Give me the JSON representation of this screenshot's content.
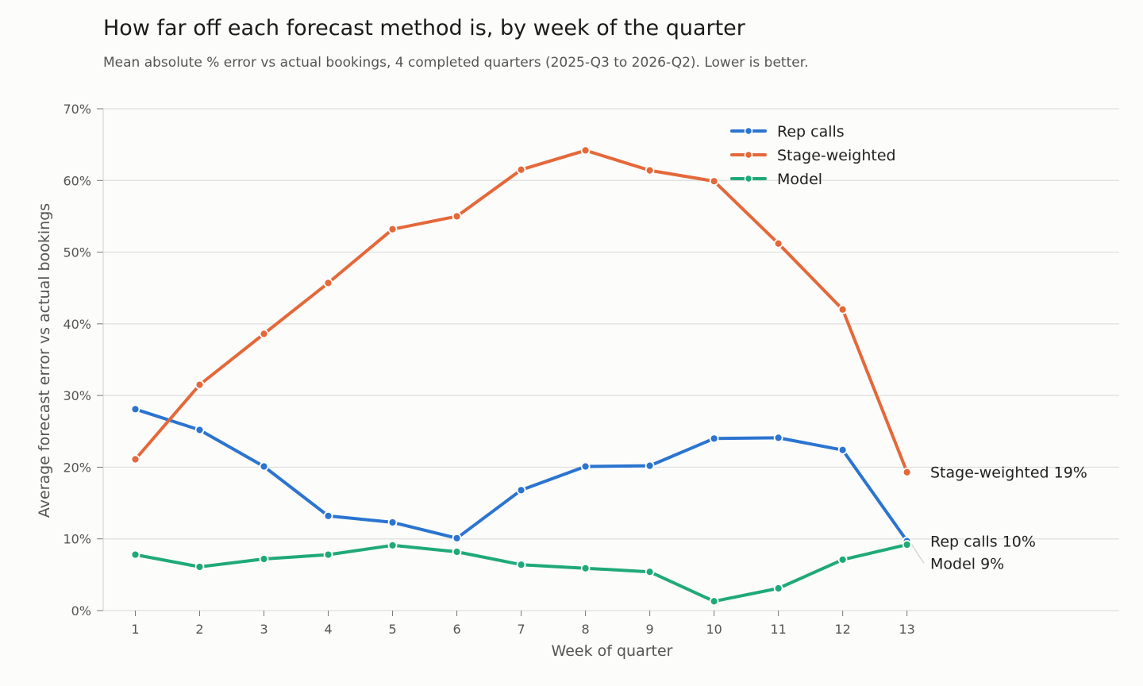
{
  "title": "How far off each forecast method is, by week of the quarter",
  "subtitle": "Mean absolute % error vs actual bookings, 4 completed quarters (2025-Q3 to 2026-Q2). Lower is better.",
  "chart_data": {
    "type": "line",
    "xlabel": "Week of quarter",
    "ylabel": "Average forecast error vs actual bookings",
    "x": [
      1,
      2,
      3,
      4,
      5,
      6,
      7,
      8,
      9,
      10,
      11,
      12,
      13
    ],
    "xlim": [
      0.5,
      16.3
    ],
    "ylim": [
      0,
      70
    ],
    "yticks": [
      0,
      10,
      20,
      30,
      40,
      50,
      60,
      70
    ],
    "ytick_labels": [
      "0%",
      "10%",
      "20%",
      "30%",
      "40%",
      "50%",
      "60%",
      "70%"
    ],
    "grid": "horizontal",
    "legend": "top-center",
    "series": [
      {
        "name": "Rep calls",
        "color": "#2b74d0",
        "values": [
          28.1,
          25.2,
          20.1,
          13.2,
          12.3,
          10.1,
          16.8,
          20.1,
          20.2,
          24.0,
          24.1,
          22.4,
          9.7
        ],
        "end_label": "Rep calls  10%"
      },
      {
        "name": "Stage-weighted",
        "color": "#e4683a",
        "values": [
          21.1,
          31.5,
          38.6,
          45.7,
          53.2,
          55.0,
          61.5,
          64.2,
          61.4,
          59.9,
          51.2,
          42.0,
          19.3
        ],
        "end_label": "Stage-weighted  19%"
      },
      {
        "name": "Model",
        "color": "#1fa97a",
        "values": [
          7.8,
          6.1,
          7.2,
          7.8,
          9.1,
          8.2,
          6.4,
          5.9,
          5.4,
          1.3,
          3.1,
          7.1,
          9.2
        ],
        "end_label": "Model  9%"
      }
    ]
  }
}
